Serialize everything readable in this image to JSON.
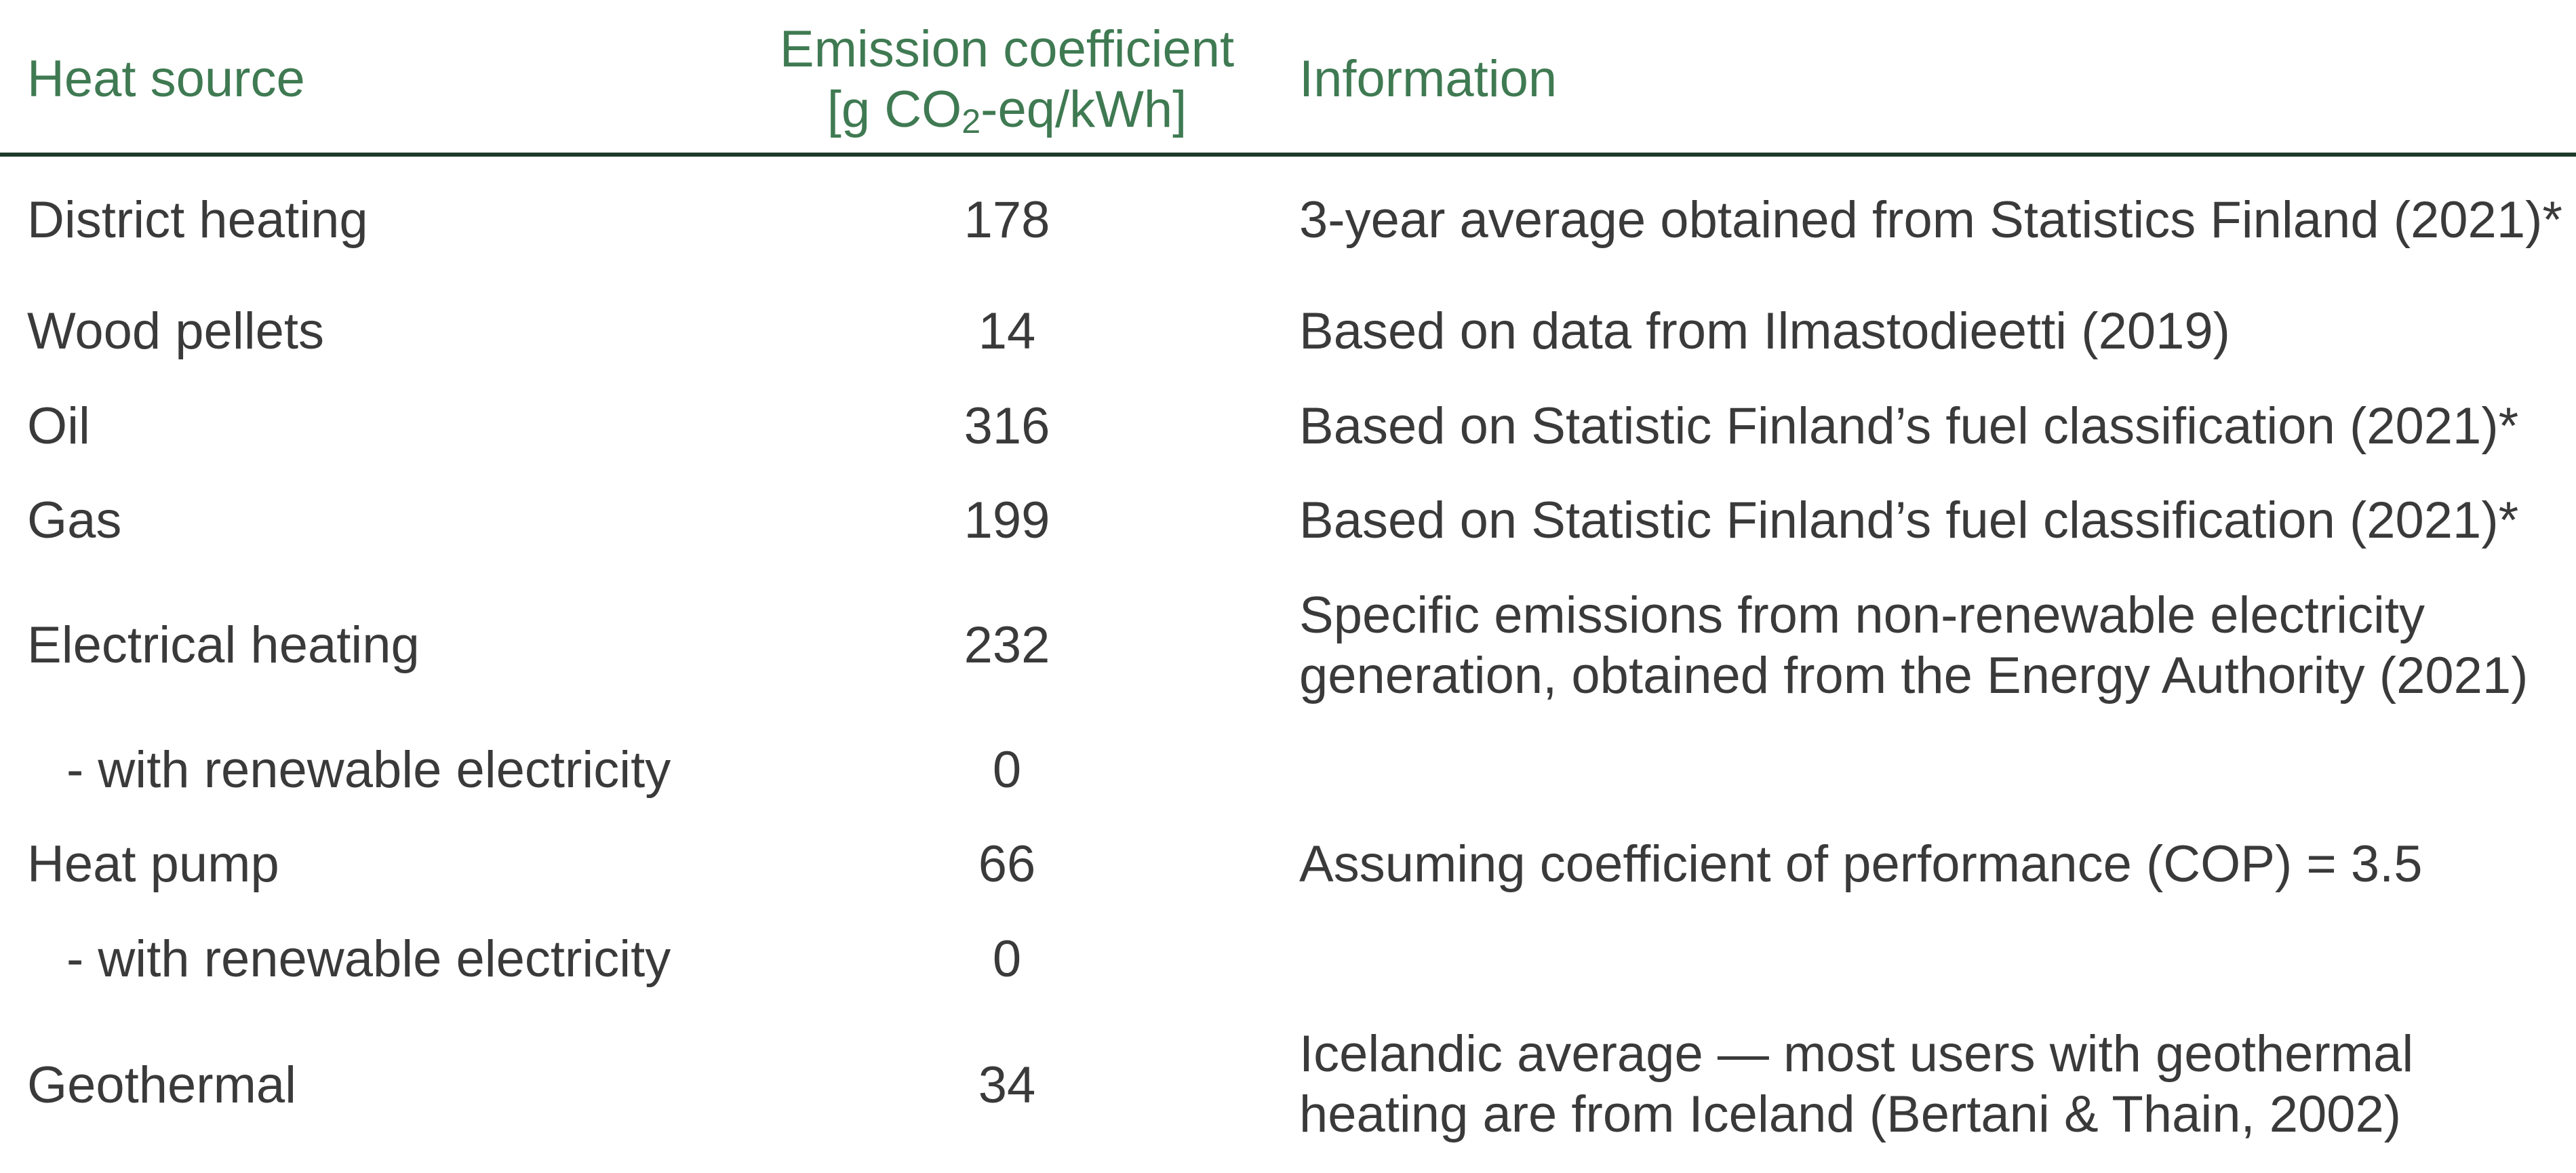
{
  "header": {
    "col_heat_source": "Heat source",
    "col_emission_line1": "Emission coefficient",
    "col_emission_unit_prefix": "[g CO",
    "col_emission_unit_sub": "2",
    "col_emission_unit_suffix": "-eq/kWh]",
    "col_information": "Information"
  },
  "rows": [
    {
      "source": "District heating",
      "value": "178",
      "info_lines": [
        "3-year average obtained from Statistics Finland (2021)*"
      ]
    },
    {
      "source": "Wood pellets",
      "value": "14",
      "info_lines": [
        "Based on data from Ilmastodieetti (2019)"
      ]
    },
    {
      "source": "Oil",
      "value": "316",
      "info_lines": [
        "Based on Statistic Finland’s fuel classification (2021)*"
      ]
    },
    {
      "source": "Gas",
      "value": "199",
      "info_lines": [
        "Based on Statistic Finland’s fuel classification (2021)*"
      ]
    },
    {
      "source": "Electrical heating",
      "value": "232",
      "info_lines": [
        "Specific emissions from non-renewable electricity",
        "generation, obtained from the Energy Authority (2021)"
      ]
    },
    {
      "source": "- with renewable electricity",
      "value": "0",
      "info_lines": []
    },
    {
      "source": "Heat pump",
      "value": "66",
      "info_lines": [
        "Assuming coefficient of performance (COP) = 3.5"
      ]
    },
    {
      "source": "- with renewable electricity",
      "value": "0",
      "info_lines": []
    },
    {
      "source": "Geothermal",
      "value": "34",
      "info_lines": [
        "Icelandic average — most users with geothermal",
        "heating are from Iceland (Bertani & Thain, 2002)"
      ]
    }
  ],
  "colors": {
    "header_text": "#3f7a52",
    "body_text": "#3a3a3a",
    "divider": "#1f3a2a"
  }
}
